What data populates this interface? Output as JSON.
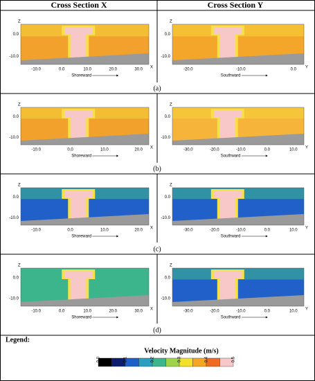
{
  "header": {
    "col_x": "Cross Section X",
    "col_y": "Cross Section Y"
  },
  "rows": [
    {
      "label": "(a)",
      "x": {
        "z": "Z",
        "zticks": [
          "0.0",
          "-10.0"
        ],
        "xticks": [
          "-10.0",
          "0.0",
          "10.0",
          "20.0",
          "30.0"
        ],
        "axis": "X",
        "direction": "Shoreward"
      },
      "y": {
        "z": "Z",
        "zticks": [
          "0.0",
          "-10.0"
        ],
        "xticks": [
          "-20.0",
          "-10.0",
          "0.0"
        ],
        "axis": "Y",
        "direction": "Southward"
      }
    },
    {
      "label": "(b)",
      "x": {
        "z": "Z",
        "zticks": [
          "0.0",
          "-10.0"
        ],
        "xticks": [
          "-10.0",
          "0.0",
          "10.0",
          "20.0"
        ],
        "axis": "X",
        "direction": "Shoreward"
      },
      "y": {
        "z": "Z",
        "zticks": [
          "0.0",
          "-10.0"
        ],
        "xticks": [
          "-30.0",
          "-20.0",
          "-10.0",
          "0.0",
          "10.0"
        ],
        "axis": "Y",
        "direction": "Southward"
      }
    },
    {
      "label": "(c)",
      "x": {
        "z": "Z",
        "zticks": [
          "0.0",
          "-10.0"
        ],
        "xticks": [
          "-10.0",
          "0.0",
          "10.0",
          "20.0"
        ],
        "axis": "X",
        "direction": "Shoreward"
      },
      "y": {
        "z": "Z",
        "zticks": [
          "0.0",
          "-10.0"
        ],
        "xticks": [
          "-30.0",
          "-20.0",
          "-10.0",
          "0.0",
          "10.0"
        ],
        "axis": "Y",
        "direction": "Southward"
      }
    },
    {
      "label": "(d)",
      "x": {
        "z": "Z",
        "zticks": [
          "0.0",
          "-10.0"
        ],
        "xticks": [
          "-10.0",
          "0.0",
          "10.0",
          "20.0",
          "30.0"
        ],
        "axis": "X",
        "direction": "Shoreward"
      },
      "y": {
        "z": "Z",
        "zticks": [
          "0.0",
          "-10.0"
        ],
        "xticks": [
          "-30.0",
          "-20.0",
          "-10.0",
          "0.0",
          "10.0"
        ],
        "axis": "Y",
        "direction": "Southward"
      }
    }
  ],
  "legend": {
    "title": "Legend:",
    "colorbar_title": "Velocity Magnitude (m/s)",
    "ticks": [
      "0.0",
      "0.1",
      "0.2",
      "0.3",
      "0.4",
      "0.5"
    ]
  }
}
